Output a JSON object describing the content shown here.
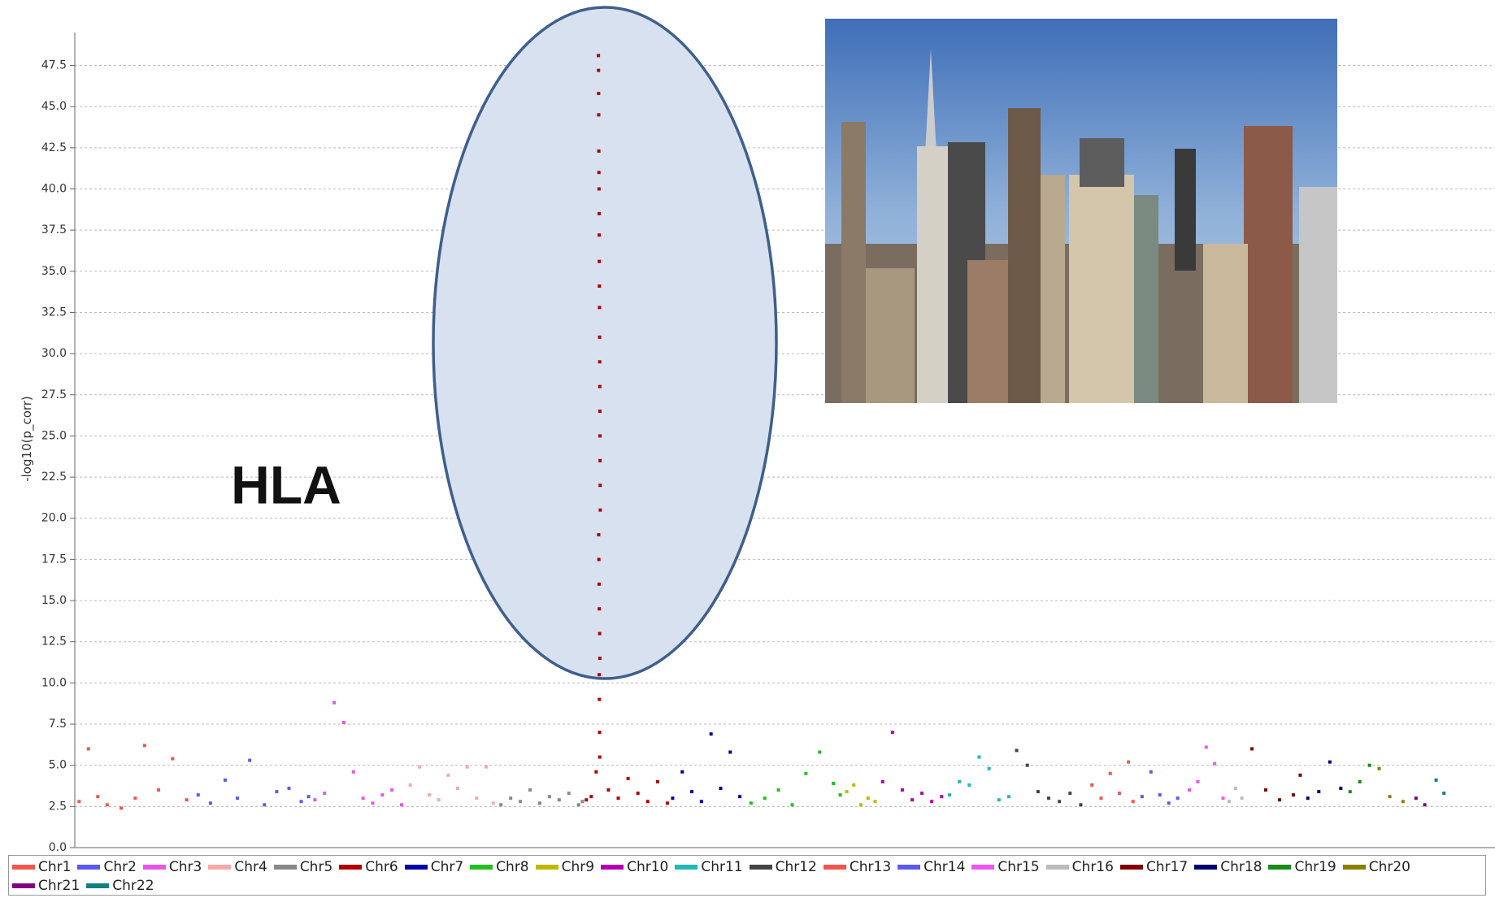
{
  "chart_data": {
    "type": "manhattan",
    "ylabel": "-log10(p_corr)",
    "annotation": "HLA",
    "ylim": [
      0,
      49.5
    ],
    "yticks": [
      {
        "value": 0,
        "label": "0.0"
      },
      2.5,
      {
        "value": 5,
        "label": "5.0"
      },
      7.5,
      {
        "value": 10,
        "label": "10.0"
      },
      12.5,
      {
        "value": 15,
        "label": "15.0"
      },
      17.5,
      {
        "value": 20,
        "label": "20.0"
      },
      22.5,
      {
        "value": 25,
        "label": "25.0"
      },
      27.5,
      {
        "value": 30,
        "label": "30.0"
      },
      32.5,
      {
        "value": 35,
        "label": "35.0"
      },
      37.5,
      {
        "value": 40,
        "label": "40.0"
      },
      42.5,
      {
        "value": 45,
        "label": "45.0"
      },
      47.5
    ],
    "grid": true,
    "series": [
      {
        "name": "Chr1",
        "color": "#f0564d",
        "x": [
          10,
          30,
          50,
          70,
          100,
          130,
          150,
          180,
          210,
          240
        ],
        "values": [
          2.8,
          6.0,
          3.1,
          2.6,
          2.4,
          3.0,
          6.2,
          3.5,
          5.4,
          2.9
        ]
      },
      {
        "name": "Chr2",
        "color": "#5a5af0",
        "x": [
          15,
          40,
          70,
          95,
          120,
          150,
          175,
          200,
          225,
          240
        ],
        "values": [
          3.2,
          2.7,
          4.1,
          3.0,
          5.3,
          2.6,
          3.4,
          3.6,
          2.8,
          3.1
        ]
      },
      {
        "name": "Chr3",
        "color": "#e855e8",
        "x": [
          10,
          30,
          50,
          70,
          90,
          110,
          130,
          150,
          170,
          190
        ],
        "values": [
          2.9,
          3.3,
          8.8,
          7.6,
          4.6,
          3.0,
          2.7,
          3.2,
          3.5,
          2.6
        ]
      },
      {
        "name": "Chr4",
        "color": "#f4aaa8",
        "x": [
          10,
          30,
          50,
          70,
          90,
          110,
          130,
          150,
          170,
          185
        ],
        "values": [
          3.8,
          4.9,
          3.2,
          2.9,
          4.4,
          3.6,
          4.9,
          3.0,
          4.9,
          2.7
        ]
      },
      {
        "name": "Chr5",
        "color": "#888888",
        "x": [
          10,
          30,
          50,
          70,
          90,
          110,
          130,
          150,
          170,
          178
        ],
        "values": [
          2.6,
          3.0,
          2.8,
          3.5,
          2.7,
          3.1,
          2.9,
          3.3,
          2.6,
          2.8
        ]
      },
      {
        "name": "Chr6",
        "color": "#b00000",
        "x": [
          5,
          15,
          25,
          29.6,
          29.8,
          30.0,
          30.2,
          30.4,
          30.6,
          30.8,
          31.0,
          31.2,
          31.4,
          31.6,
          31.8,
          32.0,
          32.2,
          32.4,
          32.6,
          32.8,
          33.0,
          33.2,
          33.4,
          30.1,
          30.5,
          30.9,
          31.3,
          32.1,
          32.5,
          31.1,
          31.5,
          31.9,
          32.3,
          50,
          70,
          90,
          110,
          130,
          150,
          170
        ],
        "values": [
          2.9,
          3.1,
          4.6,
          48.1,
          47.2,
          45.8,
          44.5,
          42.3,
          41.0,
          40.0,
          38.5,
          37.2,
          35.6,
          34.1,
          32.8,
          31.0,
          29.5,
          28.0,
          26.5,
          25.0,
          23.5,
          22.0,
          20.5,
          19.0,
          17.5,
          16.0,
          14.5,
          13.0,
          11.5,
          10.5,
          9.0,
          7.0,
          5.5,
          3.5,
          3.0,
          4.2,
          3.3,
          2.8,
          4.0,
          2.7
        ]
      },
      {
        "name": "Chr7",
        "color": "#0000a8",
        "x": [
          10,
          30,
          50,
          70,
          90,
          110,
          130,
          150
        ],
        "values": [
          3.0,
          4.6,
          3.4,
          2.8,
          6.9,
          3.6,
          5.8,
          3.1
        ]
      },
      {
        "name": "Chr8",
        "color": "#22c022",
        "x": [
          10,
          30,
          50,
          70,
          90,
          110,
          130,
          140
        ],
        "values": [
          2.7,
          3.0,
          3.5,
          2.6,
          4.5,
          5.8,
          3.9,
          3.2
        ]
      },
      {
        "name": "Chr9",
        "color": "#c0b800",
        "x": [
          10,
          40,
          70,
          100,
          130
        ],
        "values": [
          3.4,
          3.8,
          2.6,
          3.0,
          2.8
        ]
      },
      {
        "name": "Chr10",
        "color": "#b000b0",
        "x": [
          10,
          30,
          50,
          70,
          90,
          110,
          130
        ],
        "values": [
          4.0,
          7.0,
          3.5,
          2.9,
          3.3,
          2.8,
          3.1
        ]
      },
      {
        "name": "Chr11",
        "color": "#22b8b8",
        "x": [
          10,
          30,
          50,
          70,
          90,
          110,
          130
        ],
        "values": [
          3.2,
          4.0,
          3.8,
          5.5,
          4.8,
          2.9,
          3.1
        ]
      },
      {
        "name": "Chr12",
        "color": "#444444",
        "x": [
          10,
          30,
          50,
          70,
          90,
          110,
          130
        ],
        "values": [
          5.9,
          5.0,
          3.4,
          3.0,
          2.8,
          3.3,
          2.6
        ]
      },
      {
        "name": "Chr13",
        "color": "#f0564d",
        "x": [
          20,
          40,
          60,
          80,
          100,
          110
        ],
        "values": [
          3.8,
          3.0,
          4.5,
          3.3,
          5.2,
          2.8
        ]
      },
      {
        "name": "Chr14",
        "color": "#5a5af0",
        "x": [
          15,
          35,
          55,
          75,
          95
        ],
        "values": [
          3.1,
          4.6,
          3.2,
          2.7,
          3.0
        ]
      },
      {
        "name": "Chr15",
        "color": "#f055f0",
        "x": [
          15,
          35,
          55,
          75,
          95
        ],
        "values": [
          3.5,
          4.0,
          6.1,
          5.1,
          3.0
        ]
      },
      {
        "name": "Chr16",
        "color": "#bbbbbb",
        "x": [
          15,
          45,
          75
        ],
        "values": [
          2.8,
          3.6,
          3.0
        ]
      },
      {
        "name": "Chr17",
        "color": "#800000",
        "x": [
          10,
          30,
          50,
          70,
          80
        ],
        "values": [
          6.0,
          3.5,
          2.9,
          3.2,
          4.4
        ]
      },
      {
        "name": "Chr18",
        "color": "#000070",
        "x": [
          10,
          30,
          50,
          70
        ],
        "values": [
          3.0,
          3.4,
          5.2,
          3.6
        ]
      },
      {
        "name": "Chr19",
        "color": "#1a8a1a",
        "x": [
          10,
          30,
          50
        ],
        "values": [
          3.4,
          4.0,
          5.0
        ]
      },
      {
        "name": "Chr20",
        "color": "#8a8000",
        "x": [
          10,
          30,
          55
        ],
        "values": [
          4.8,
          3.1,
          2.8
        ]
      },
      {
        "name": "Chr21",
        "color": "#800080",
        "x": [
          20,
          40
        ],
        "values": [
          3.0,
          2.6
        ]
      },
      {
        "name": "Chr22",
        "color": "#108080",
        "x": [
          20,
          40
        ],
        "values": [
          4.1,
          3.3
        ]
      }
    ]
  }
}
